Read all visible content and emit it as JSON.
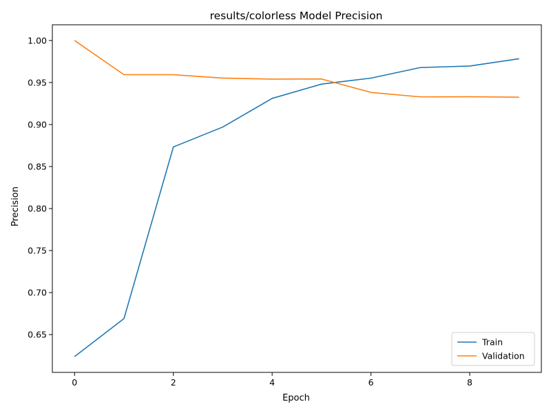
{
  "chart_data": {
    "type": "line",
    "title": "results/colorless Model Precision",
    "xlabel": "Epoch",
    "ylabel": "Precision",
    "x": [
      0,
      1,
      2,
      3,
      4,
      5,
      6,
      7,
      8,
      9
    ],
    "series": [
      {
        "name": "Train",
        "color": "#1f77b4",
        "values": [
          0.6238,
          0.669,
          0.8733,
          0.897,
          0.9311,
          0.9481,
          0.9552,
          0.9678,
          0.9696,
          0.9783
        ]
      },
      {
        "name": "Validation",
        "color": "#ff7f0e",
        "values": [
          1.0,
          0.9593,
          0.9593,
          0.9553,
          0.954,
          0.9542,
          0.9382,
          0.9329,
          0.933,
          0.9325
        ]
      }
    ],
    "xlim": [
      -0.45,
      9.45
    ],
    "ylim": [
      0.605,
      1.0187
    ],
    "xticks": [
      0,
      2,
      4,
      6,
      8
    ],
    "yticks": [
      0.65,
      0.7,
      0.75,
      0.8,
      0.85,
      0.9,
      0.95,
      1.0
    ],
    "xtick_labels": [
      "0",
      "2",
      "4",
      "6",
      "8"
    ],
    "ytick_labels": [
      "0.65",
      "0.70",
      "0.75",
      "0.80",
      "0.85",
      "0.90",
      "0.95",
      "1.00"
    ],
    "grid": false,
    "legend_position": "lower-right"
  }
}
